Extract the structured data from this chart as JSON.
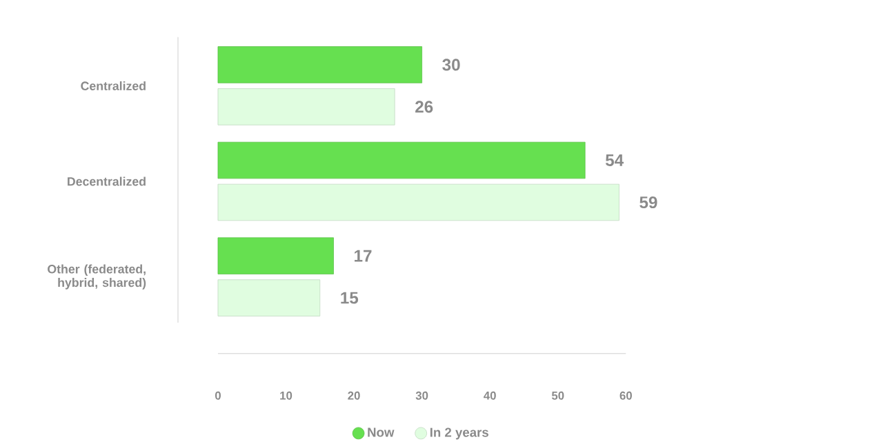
{
  "chart_data": {
    "type": "bar",
    "orientation": "horizontal",
    "categories": [
      "Centralized",
      "Decentralized",
      "Other (federated, hybrid, shared)"
    ],
    "series": [
      {
        "name": "Now",
        "color": "#66e050",
        "values": [
          30,
          54,
          17
        ]
      },
      {
        "name": "In 2 years",
        "color": "#e0fde0",
        "values": [
          26,
          59,
          15
        ]
      }
    ],
    "xlim": [
      0,
      60
    ],
    "xticks": [
      0,
      10,
      20,
      30,
      40,
      50,
      60
    ],
    "data_labels": true,
    "legend": "bottom"
  }
}
